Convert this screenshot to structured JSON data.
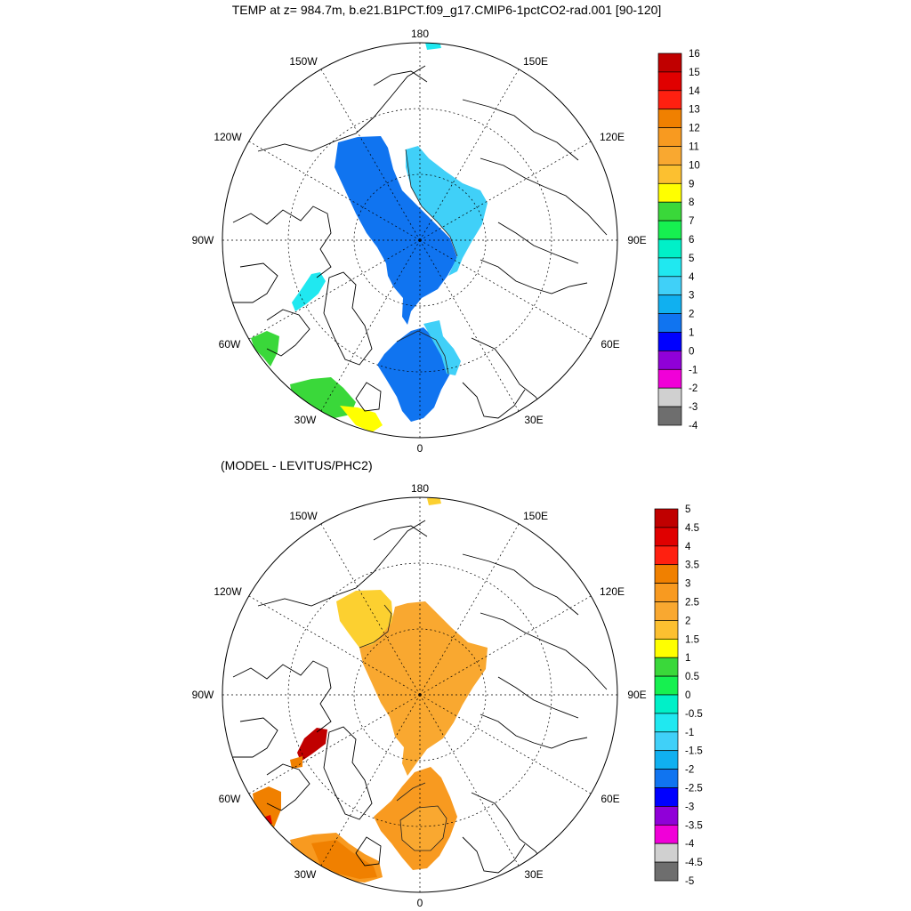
{
  "top_panel": {
    "title": "TEMP at z= 984.7m, b.e21.B1PCT.f09_g17.CMIP6-1pctCO2-rad.001 [90-120]",
    "longitude_labels": {
      "lon_180": "180",
      "lon_150w": "150W",
      "lon_150e": "150E",
      "lon_120w": "120W",
      "lon_120e": "120E",
      "lon_90w": "90W",
      "lon_90e": "90E",
      "lon_60w": "60W",
      "lon_60e": "60E",
      "lon_30w": "30W",
      "lon_30e": "30E",
      "lon_0": "0"
    },
    "colorbar": {
      "labels": [
        "16",
        "15",
        "14",
        "13",
        "12",
        "11",
        "10",
        "9",
        "8",
        "7",
        "6",
        "5",
        "4",
        "3",
        "2",
        "1",
        "0",
        "-1",
        "-2",
        "-3",
        "-4"
      ],
      "colors": [
        "#c00000",
        "#e00000",
        "#ff2010",
        "#f08000",
        "#f89a20",
        "#f9a830",
        "#fcc030",
        "#ffff00",
        "#3ad83a",
        "#16f050",
        "#00f0c8",
        "#20e8f0",
        "#40d0f8",
        "#10b0f0",
        "#1074f0",
        "#0000ff",
        "#9000d8",
        "#f000d8",
        "#d0d0d0",
        "#6e6e6e"
      ]
    }
  },
  "bottom_panel": {
    "title": "(MODEL - LEVITUS/PHC2)",
    "longitude_labels": {
      "lon_180": "180",
      "lon_150w": "150W",
      "lon_150e": "150E",
      "lon_120w": "120W",
      "lon_120e": "120E",
      "lon_90w": "90W",
      "lon_90e": "90E",
      "lon_60w": "60W",
      "lon_60e": "60E",
      "lon_30w": "30W",
      "lon_30e": "30E",
      "lon_0": "0"
    },
    "colorbar": {
      "labels": [
        "5",
        "4.5",
        "4",
        "3.5",
        "3",
        "2.5",
        "2",
        "1.5",
        "1",
        "0.5",
        "0",
        "-0.5",
        "-1",
        "-1.5",
        "-2",
        "-2.5",
        "-3",
        "-3.5",
        "-4",
        "-4.5",
        "-5"
      ],
      "colors": [
        "#c00000",
        "#e00000",
        "#ff2010",
        "#f08000",
        "#f89a20",
        "#f9a830",
        "#fcc030",
        "#ffff00",
        "#3ad83a",
        "#16f050",
        "#00f0c8",
        "#20e8f0",
        "#40d0f8",
        "#10b0f0",
        "#1074f0",
        "#0000ff",
        "#9000d8",
        "#f000d8",
        "#d0d0d0",
        "#6e6e6e"
      ]
    }
  }
}
